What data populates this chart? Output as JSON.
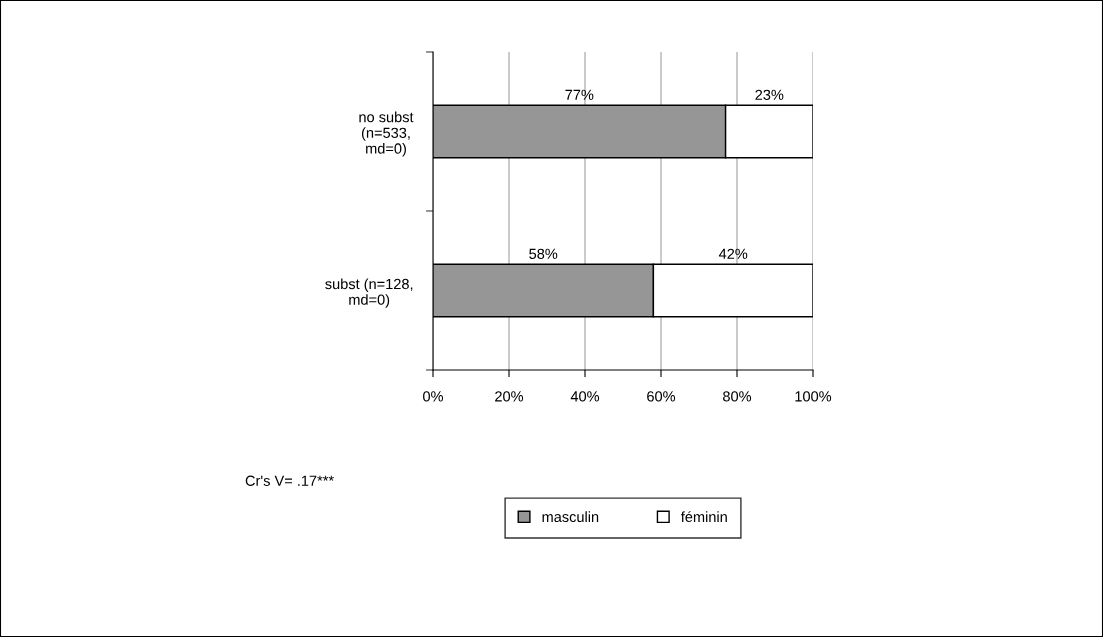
{
  "chart_data": {
    "type": "bar",
    "orientation": "horizontal",
    "stacked": true,
    "categories": [
      "no subst\n(n=533,\nmd=0)",
      "subst (n=128,\nmd=0)"
    ],
    "series": [
      {
        "name": "masculin",
        "color": "#969696",
        "values": [
          77,
          58
        ],
        "value_labels": [
          "77%",
          "58%"
        ]
      },
      {
        "name": "féminin",
        "color": "#ffffff",
        "values": [
          23,
          42
        ],
        "value_labels": [
          "23%",
          "42%"
        ]
      }
    ],
    "xlim": [
      0,
      100
    ],
    "xticks": [
      {
        "value": 0,
        "label": "0%"
      },
      {
        "value": 20,
        "label": "20%"
      },
      {
        "value": 40,
        "label": "40%"
      },
      {
        "value": 60,
        "label": "60%"
      },
      {
        "value": 80,
        "label": "80%"
      },
      {
        "value": 100,
        "label": "100%"
      }
    ],
    "grid": "x",
    "legend": "bottom",
    "annotations": [
      "Cr's V= .17***"
    ]
  }
}
